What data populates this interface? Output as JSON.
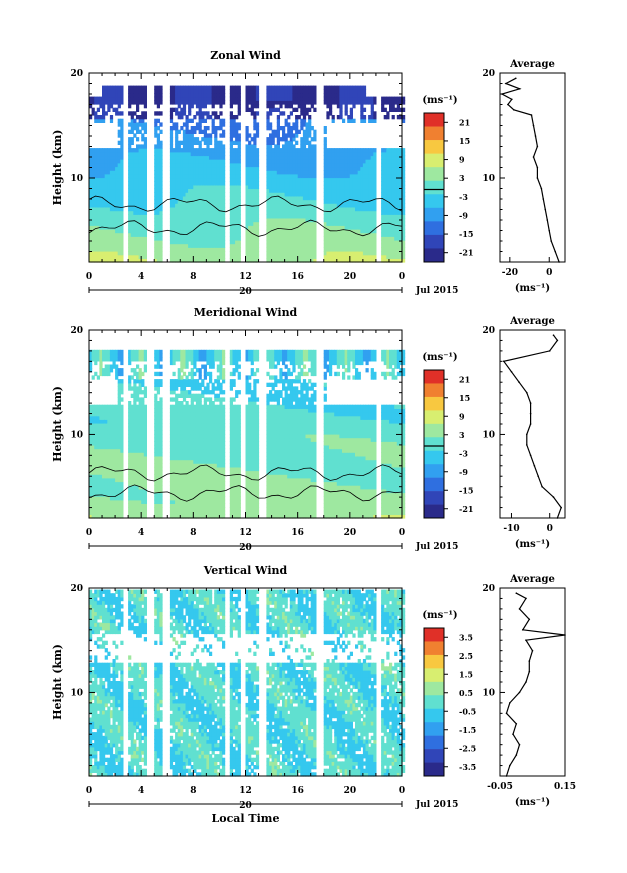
{
  "chart_data": [
    {
      "type": "heatmap",
      "title": "Zonal Wind",
      "ylabel": "Height (km)",
      "xlabel": "",
      "xlim": [
        0,
        24
      ],
      "ylim": [
        2,
        20
      ],
      "x_ticks": [
        "0",
        "4",
        "8",
        "12",
        "16",
        "20",
        "0"
      ],
      "y_ticks": [
        "20",
        "10"
      ],
      "date_label": "20",
      "month_label": "Jul 2015",
      "colorbar": {
        "unit": "(ms⁻¹)",
        "ticks": [
          "21",
          "15",
          "9",
          "3",
          "-3",
          "-9",
          "-15",
          "-21"
        ],
        "min": -24,
        "max": 24
      },
      "profile": {
        "title": "Average",
        "xlabel": "(ms⁻¹)",
        "x_ticks": [
          "-20",
          "0"
        ],
        "xlim": [
          -25,
          8
        ],
        "y_ticks": [
          "20",
          "10"
        ],
        "heights": [
          2,
          3,
          4,
          5,
          6,
          7,
          8,
          9,
          10,
          11,
          12,
          13,
          14,
          15,
          16,
          16.5,
          17,
          17.5,
          18,
          18.5,
          19,
          19.5
        ],
        "values": [
          5,
          3,
          1,
          0,
          -1,
          -2,
          -3,
          -4,
          -6,
          -6,
          -8,
          -6,
          -7,
          -8,
          -9,
          -18,
          -21,
          -19,
          -24,
          -15,
          -22,
          -17
        ]
      }
    },
    {
      "type": "heatmap",
      "title": "Meridional Wind",
      "ylabel": "Height (km)",
      "xlabel": "",
      "xlim": [
        0,
        24
      ],
      "ylim": [
        2,
        20
      ],
      "x_ticks": [
        "0",
        "4",
        "8",
        "12",
        "16",
        "20",
        "0"
      ],
      "y_ticks": [
        "20",
        "10"
      ],
      "date_label": "20",
      "month_label": "Jul 2015",
      "colorbar": {
        "unit": "(ms⁻¹)",
        "ticks": [
          "21",
          "15",
          "9",
          "3",
          "-3",
          "-9",
          "-15",
          "-21"
        ],
        "min": -24,
        "max": 24
      },
      "profile": {
        "title": "Average",
        "xlabel": "(ms⁻¹)",
        "x_ticks": [
          "-10",
          "0"
        ],
        "xlim": [
          -13,
          4
        ],
        "y_ticks": [
          "20",
          "10"
        ],
        "heights": [
          2,
          3,
          4,
          5,
          6,
          7,
          8,
          9,
          10,
          11,
          12,
          13,
          14,
          15,
          16,
          17,
          18,
          19,
          19.5
        ],
        "values": [
          2,
          3,
          1,
          -2,
          -3,
          -4,
          -5,
          -6,
          -6,
          -5,
          -5,
          -5,
          -6,
          -8,
          -10,
          -12,
          0,
          2,
          1
        ]
      }
    },
    {
      "type": "heatmap",
      "title": "Vertical Wind",
      "ylabel": "Height (km)",
      "xlabel": "Local Time",
      "xlim": [
        0,
        24
      ],
      "ylim": [
        2,
        20
      ],
      "x_ticks": [
        "0",
        "4",
        "8",
        "12",
        "16",
        "20",
        "0"
      ],
      "y_ticks": [
        "20",
        "10"
      ],
      "date_label": "20",
      "month_label": "Jul 2015",
      "colorbar": {
        "unit": "(ms⁻¹)",
        "ticks": [
          "3.5",
          "2.5",
          "1.5",
          "0.5",
          "-0.5",
          "-1.5",
          "-2.5",
          "-3.5"
        ],
        "min": -4,
        "max": 4
      },
      "profile": {
        "title": "Average",
        "xlabel": "(ms⁻¹)",
        "x_ticks": [
          "-0.05",
          "0.15"
        ],
        "xlim": [
          -0.05,
          0.15
        ],
        "y_ticks": [
          "20",
          "10"
        ],
        "heights": [
          2,
          3,
          4,
          5,
          6,
          7,
          8,
          9,
          10,
          11,
          12,
          13,
          14,
          15,
          15.5,
          16,
          17,
          18,
          19,
          19.5
        ],
        "values": [
          -0.03,
          -0.02,
          0.0,
          0.01,
          -0.01,
          0.0,
          -0.03,
          -0.02,
          0.01,
          0.03,
          0.04,
          0.04,
          0.05,
          0.03,
          0.15,
          0.02,
          0.04,
          0.01,
          0.03,
          0.0
        ]
      }
    }
  ]
}
